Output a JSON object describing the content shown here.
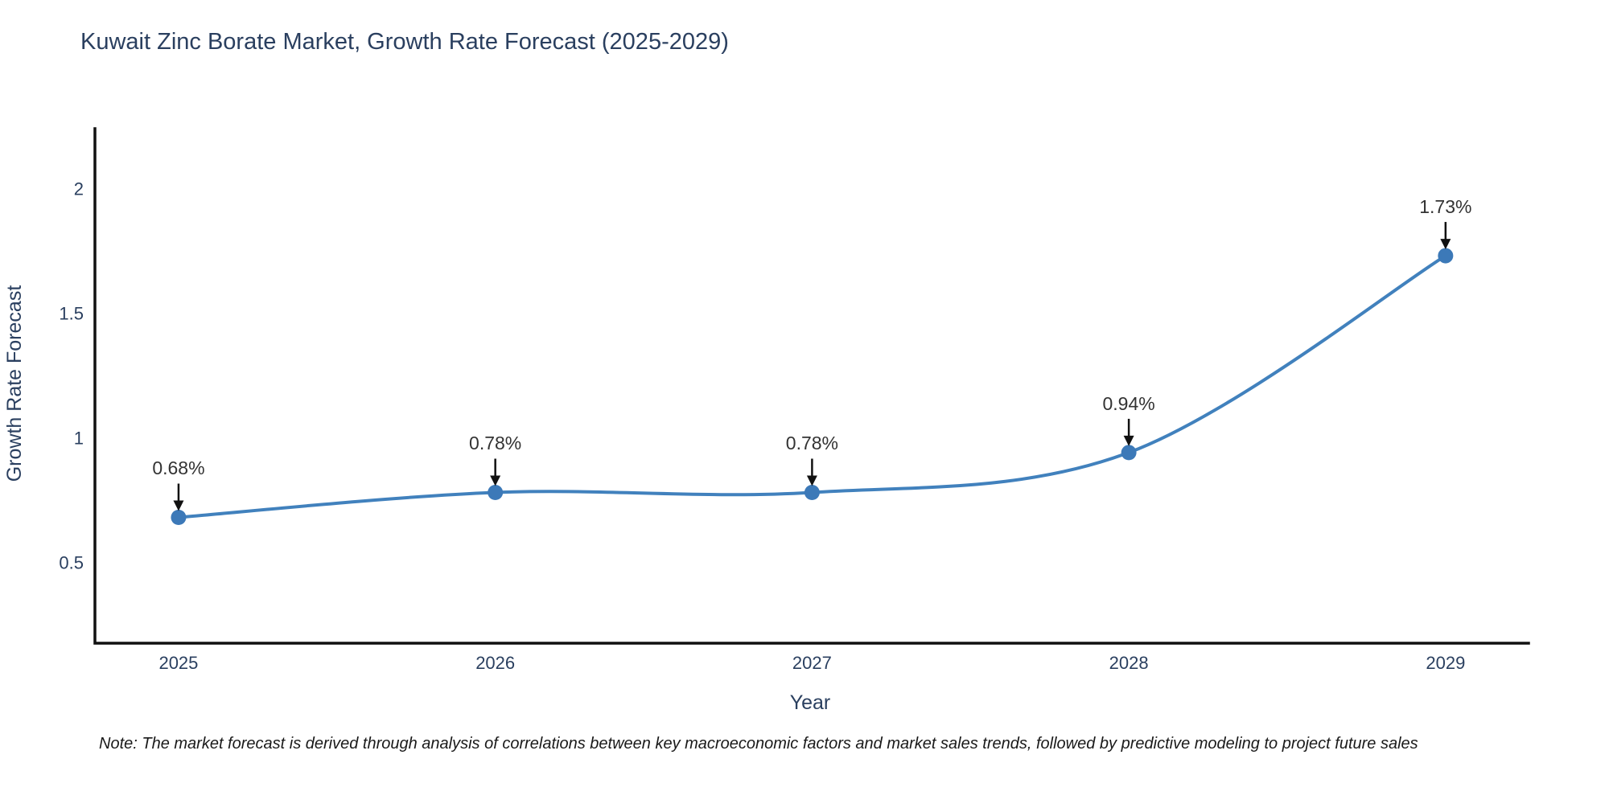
{
  "title": "Kuwait Zinc Borate Market, Growth Rate Forecast (2025-2029)",
  "footnote": "Note: The market forecast is derived through analysis of correlations between key macroeconomic factors and market sales trends, followed by predictive modeling to project future sales",
  "colors": {
    "title_text": "#2a3f5f",
    "tick_text": "#2a3f5f",
    "axis_line": "#111111",
    "line": "#4181bd",
    "marker": "#3c79b8",
    "arrow": "#111111",
    "annotation_text": "#333333"
  },
  "chart_data": {
    "type": "line",
    "title": "Kuwait Zinc Borate Market, Growth Rate Forecast (2025-2029)",
    "x": [
      2025,
      2026,
      2027,
      2028,
      2029
    ],
    "y": [
      0.68,
      0.78,
      0.78,
      0.94,
      1.73
    ],
    "point_labels": [
      "0.68%",
      "0.78%",
      "0.78%",
      "0.94%",
      "1.73%"
    ],
    "xlabel": "Year",
    "ylabel": "Growth Rate Forecast",
    "xtick_labels": [
      "2025",
      "2026",
      "2027",
      "2028",
      "2029"
    ],
    "ytick_values": [
      0.5,
      1,
      1.5,
      2
    ],
    "ytick_labels": [
      "0.5",
      "1",
      "1.5",
      "2"
    ],
    "xlim": [
      2024.736,
      2029.262
    ],
    "ylim": [
      0.175,
      2.24
    ],
    "grid": false,
    "legend": "none",
    "line_shape": "spline",
    "markers": true,
    "annotations_have_arrows": true
  }
}
